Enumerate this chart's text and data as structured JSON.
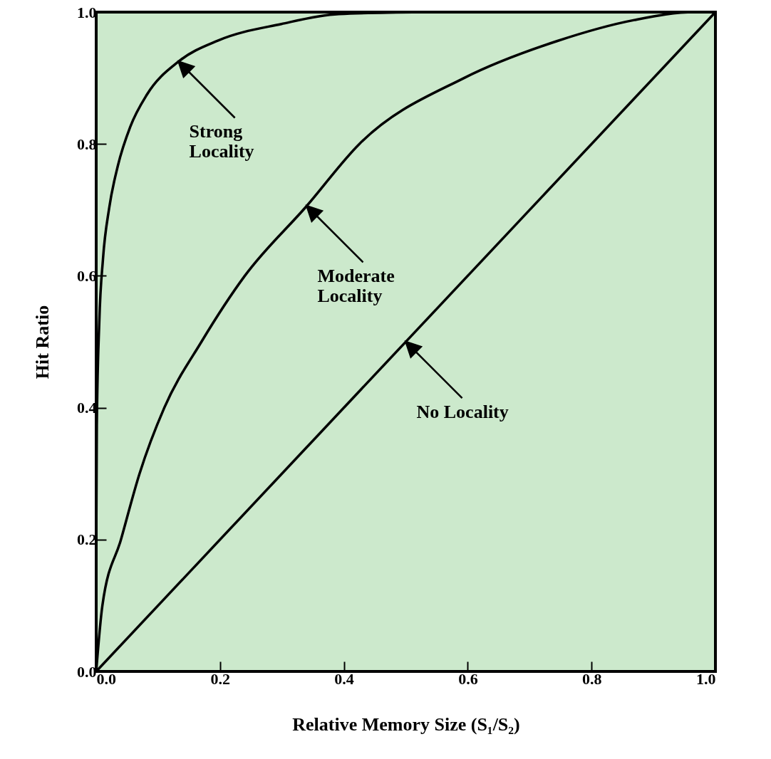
{
  "chart_data": {
    "type": "line",
    "xlabel": "Relative Memory Size (S₁/S₂)",
    "ylabel": "Hit Ratio",
    "xlim": [
      0,
      1
    ],
    "ylim": [
      0,
      1
    ],
    "xticks": [
      {
        "value": 0,
        "label": "0.0"
      },
      {
        "value": 0.2,
        "label": "0.2"
      },
      {
        "value": 0.4,
        "label": "0.4"
      },
      {
        "value": 0.6,
        "label": "0.6"
      },
      {
        "value": 0.8,
        "label": "0.8"
      },
      {
        "value": 1,
        "label": "1.0"
      }
    ],
    "yticks": [
      {
        "value": 0,
        "label": "0.0"
      },
      {
        "value": 0.2,
        "label": "0.2"
      },
      {
        "value": 0.4,
        "label": "0.4"
      },
      {
        "value": 0.6,
        "label": "0.6"
      },
      {
        "value": 0.8,
        "label": "0.8"
      },
      {
        "value": 1,
        "label": "1.0"
      }
    ],
    "grid": false,
    "series": [
      {
        "color": "#000000",
        "x": [
          0,
          0,
          0.001,
          0.005,
          0.011,
          0.021,
          0.035,
          0.055,
          0.082,
          0.133,
          0.197,
          0.299,
          0.392,
          0.525
        ],
        "values": [
          0,
          0.18,
          0.373,
          0.53,
          0.626,
          0.703,
          0.767,
          0.826,
          0.875,
          0.925,
          0.957,
          0.982,
          0.997,
          1
        ]
      },
      {
        "color": "#000000",
        "x": [
          0,
          0.01,
          0.04,
          0.07,
          0.11,
          0.17,
          0.24,
          0.34,
          0.425,
          0.594,
          0.744,
          0.869,
          0.966,
          1
        ],
        "values": [
          0,
          0.1,
          0.2,
          0.3,
          0.4,
          0.5,
          0.6,
          0.706,
          0.8,
          0.9,
          0.956,
          0.988,
          1,
          1
        ]
      },
      {
        "color": "#000000",
        "x": [
          0,
          1
        ],
        "values": [
          0,
          1
        ]
      }
    ],
    "annotations": [
      {
        "text": "Strong\nLocality",
        "x": 0.133,
        "y": 0.925
      },
      {
        "text": "Moderate\nLocality",
        "x": 0.34,
        "y": 0.706
      },
      {
        "text": "No Locality",
        "x": 0.5,
        "y": 0.5
      }
    ]
  }
}
